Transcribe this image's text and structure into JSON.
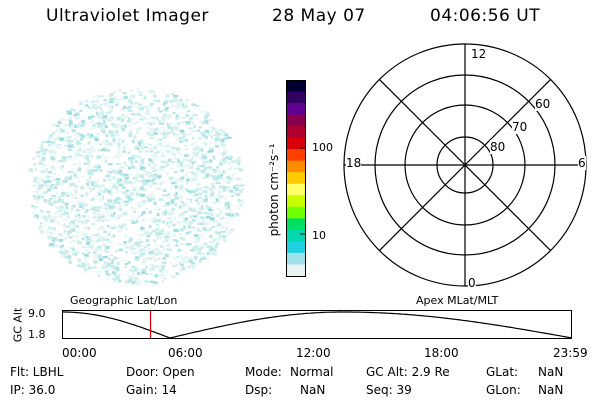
{
  "header": {
    "instrument": "Ultraviolet Imager",
    "date": "28 May 07",
    "time": "04:06:56 UT"
  },
  "colorbar": {
    "label": "photon cm⁻²s⁻¹",
    "ticks": [
      "100",
      "10"
    ],
    "colors": [
      "#000030",
      "#300060",
      "#600090",
      "#8a0050",
      "#b00030",
      "#d8000a",
      "#ff4000",
      "#ff8c00",
      "#ffcc00",
      "#ffff66",
      "#c8ff00",
      "#70ff00",
      "#00e060",
      "#00d8b0",
      "#20d0e0",
      "#a0e0e8",
      "#e8f4f4"
    ]
  },
  "polar_plot": {
    "mlt_labels": {
      "top": "12",
      "left": "18",
      "right": "6",
      "bottom": "0"
    },
    "lat_labels": [
      "60",
      "70",
      "80"
    ]
  },
  "geo_label": "Geographic Lat/Lon",
  "apex_label": "Apex MLat/MLT",
  "timeline": {
    "axis_label": "GC Alt",
    "y_ticks": [
      "9.0",
      "1.8"
    ],
    "x_ticks": [
      "00:00",
      "06:00",
      "12:00",
      "18:00",
      "23:59"
    ],
    "cursor_fraction": 0.172,
    "cursor_color": "#cc0000"
  },
  "info": {
    "flt": "Flt: LBHL",
    "door": "Door: Open",
    "mode_label": "Mode:",
    "mode_value": "Normal",
    "gcalt": "GC Alt: 2.9 Re",
    "glat_label": "GLat:",
    "glat_value": "NaN",
    "ip": "IP: 36.0",
    "gain": "Gain: 14",
    "dsp_label": "Dsp:",
    "dsp_value": "NaN",
    "seq": "Seq: 39",
    "glon_label": "GLon:",
    "glon_value": "NaN"
  }
}
